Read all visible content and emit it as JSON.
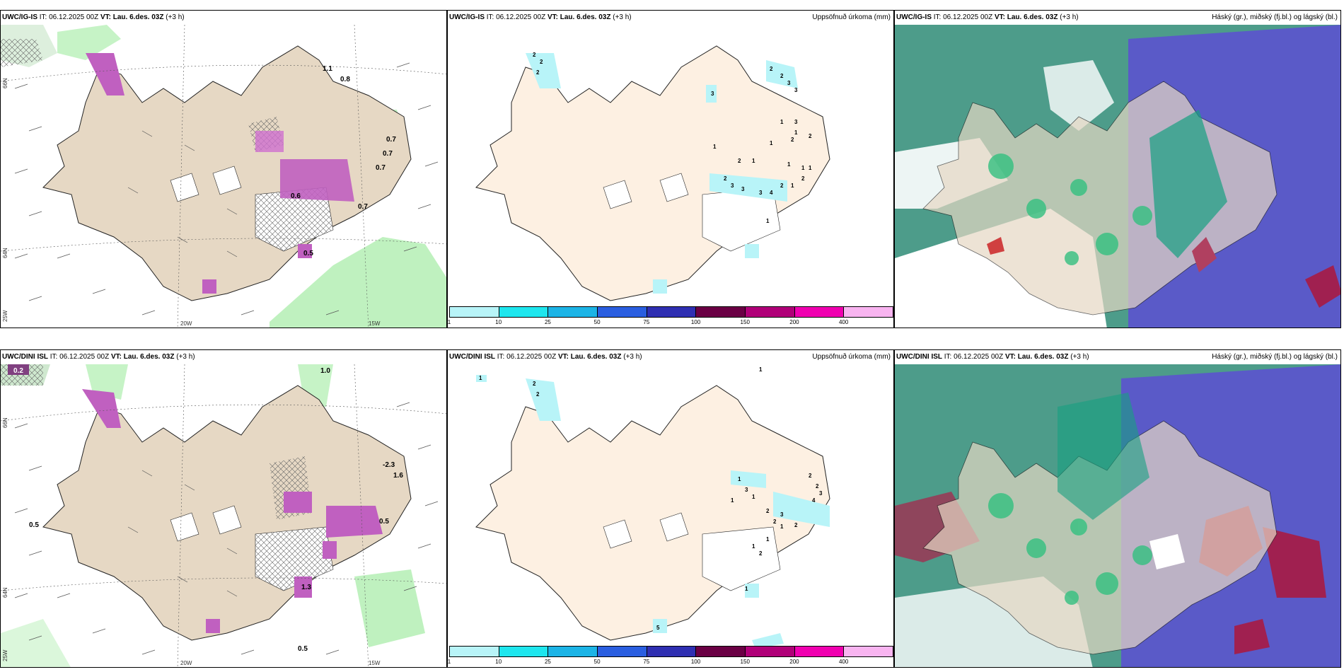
{
  "panels": {
    "p1": {
      "model": "UWC/IG-IS",
      "it_label": "IT:",
      "it": "06.12.2025 00Z",
      "vt_label": "VT:",
      "vt": "Lau. 6.des. 03Z",
      "lead": "(+3 h)",
      "right": ""
    },
    "p2": {
      "model": "UWC/IG-IS",
      "it_label": "IT:",
      "it": "06.12.2025 00Z",
      "vt_label": "VT:",
      "vt": "Lau. 6.des. 03Z",
      "lead": "(+3 h)",
      "right": "Uppsöfnuð úrkoma (mm)"
    },
    "p3": {
      "model": "UWC/IG-IS",
      "it_label": "IT:",
      "it": "06.12.2025 00Z",
      "vt_label": "VT:",
      "vt": "Lau. 6.des. 03Z",
      "lead": "(+3 h)",
      "right": "Háský (gr.), miðský (fj.bl.) og lágský (bl.)"
    },
    "p4": {
      "model": "UWC/DINI ISL",
      "it_label": "IT:",
      "it": "06.12.2025 00Z",
      "vt_label": "VT:",
      "vt": "Lau. 6.des. 03Z",
      "lead": "(+3 h)",
      "right": ""
    },
    "p5": {
      "model": "UWC/DINI ISL",
      "it_label": "IT:",
      "it": "06.12.2025 00Z",
      "vt_label": "VT:",
      "vt": "Lau. 6.des. 03Z",
      "lead": "(+3 h)",
      "right": "Uppsöfnuð úrkoma (mm)"
    },
    "p6": {
      "model": "UWC/DINI ISL",
      "it_label": "IT:",
      "it": "06.12.2025 00Z",
      "vt_label": "VT:",
      "vt": "Lau. 6.des. 03Z",
      "lead": "(+3 h)",
      "right": "Háský (gr.), miðský (fj.bl.) og lágský (bl.)"
    }
  },
  "axes": {
    "lon1": "20W",
    "lon2": "15W",
    "lat_top": "66N",
    "lat_mid": "64N",
    "lat_bot": "25W",
    "lat_r1": "66N",
    "lat_r2": "64N"
  },
  "colorbar": {
    "ticks": [
      "1",
      "10",
      "25",
      "50",
      "75",
      "100",
      "150",
      "200",
      "400"
    ],
    "colors": [
      "#b8f4f8",
      "#1ee6ee",
      "#1cb4e6",
      "#2a5ee0",
      "#2f2fb2",
      "#6a0044",
      "#b00078",
      "#f000b0",
      "#f8b4f0"
    ]
  },
  "wind_labels": {
    "top": [
      "0.8",
      "0.7",
      "0.7",
      "0.7",
      "0.7",
      "0.6",
      "1.1",
      "0.5"
    ],
    "bottom": [
      "0.2",
      "1.0",
      "0.5",
      "0.5",
      "0.5",
      "1.3",
      "-2.3",
      "1.6"
    ]
  },
  "precip_labels": {
    "top": [
      "2",
      "2",
      "2",
      "3",
      "2",
      "2",
      "3",
      "3",
      "1",
      "3",
      "1",
      "2",
      "1",
      "2",
      "1",
      "2",
      "1",
      "1",
      "2",
      "3",
      "3",
      "3",
      "4",
      "2",
      "1",
      "1",
      "1",
      "2",
      "1"
    ],
    "bottom": [
      "1",
      "2",
      "2",
      "1",
      "1",
      "3",
      "1",
      "1",
      "2",
      "2",
      "3",
      "4",
      "2",
      "2",
      "1",
      "3",
      "2",
      "1",
      "1",
      "2",
      "5",
      "1"
    ]
  }
}
